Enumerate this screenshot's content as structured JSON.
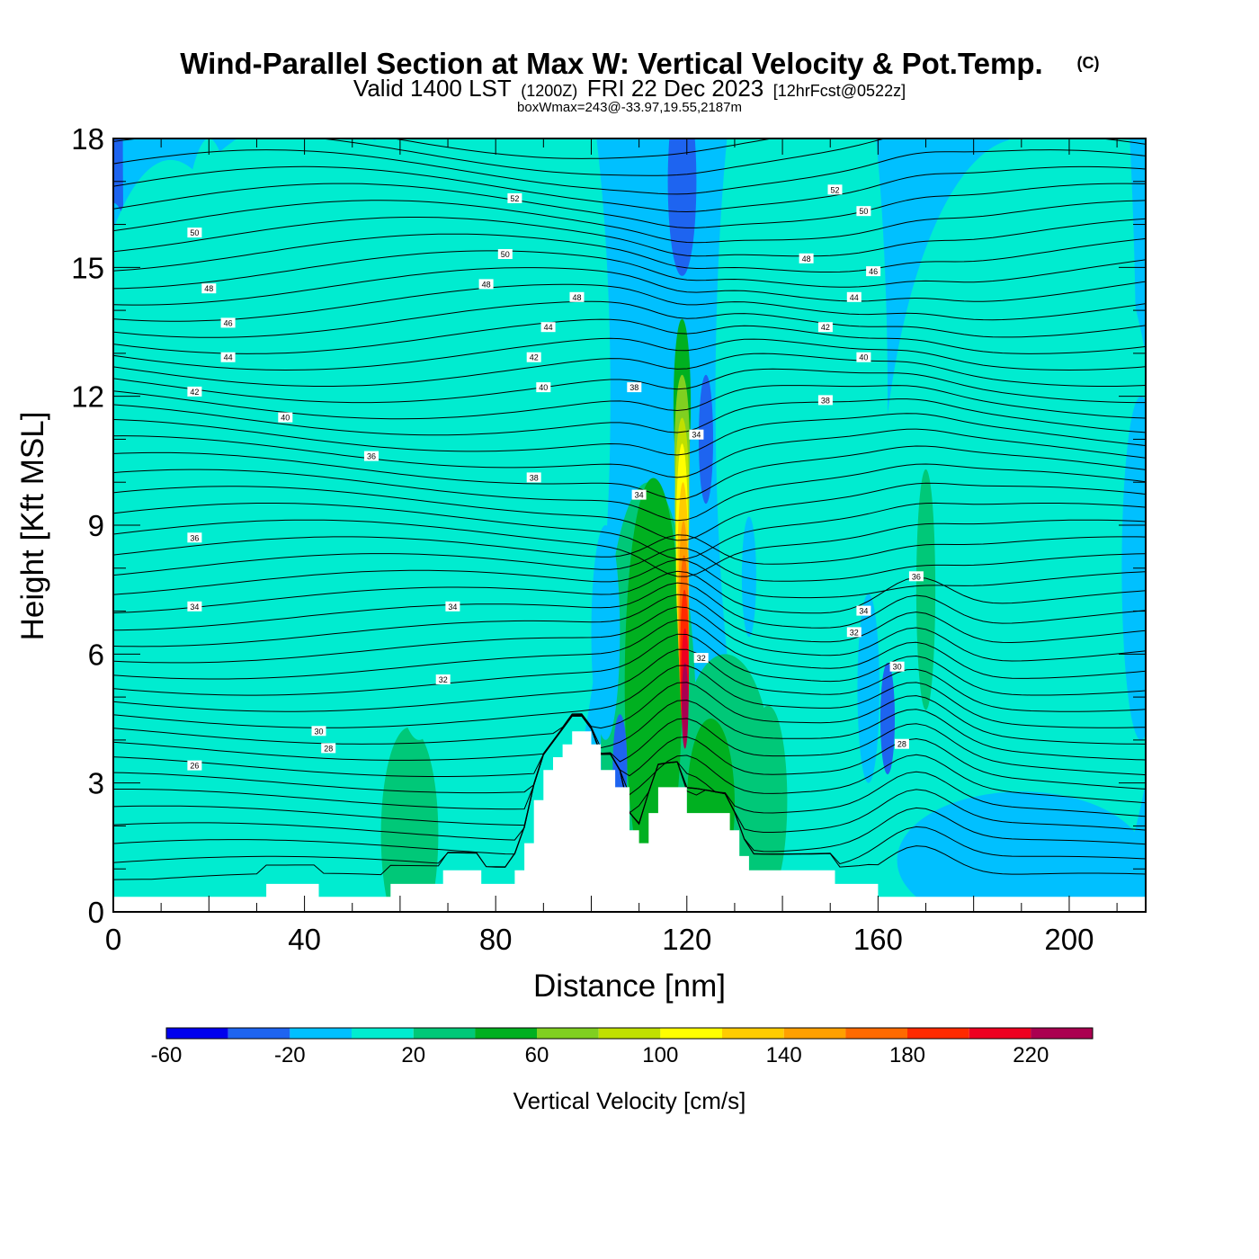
{
  "chart_data": {
    "type": "contour",
    "title": "Wind-Parallel Section at Max W: Vertical Velocity & Pot.Temp.",
    "title_suffix": "(C)",
    "subtitle_prefix": "Valid 1400 LST",
    "subtitle_z": "(1200Z)",
    "subtitle_date": "FRI 22 Dec 2023",
    "subtitle_fcst": "[12hrFcst@0522z]",
    "subtitle_meta": "boxWmax=243@-33.97,19.55,2187m",
    "xlabel": "Distance [nm]",
    "ylabel": "Height [Kft MSL]",
    "xlim": [
      0,
      216
    ],
    "ylim": [
      0,
      18
    ],
    "x_ticks": [
      0,
      40,
      80,
      120,
      160,
      200
    ],
    "y_ticks": [
      0,
      3,
      6,
      9,
      12,
      15,
      18
    ],
    "x_tick_labels": [
      "0",
      "40",
      "80",
      "120",
      "160",
      "200"
    ],
    "y_tick_labels": [
      "0",
      "3",
      "6",
      "9",
      "12",
      "15",
      "18"
    ],
    "colorbar": {
      "label": "Vertical Velocity [cm/s]",
      "bounds": [
        -60,
        -40,
        -20,
        0,
        20,
        40,
        60,
        80,
        100,
        120,
        140,
        160,
        180,
        200,
        220,
        240
      ],
      "colors": [
        "#0000ee",
        "#1e64f0",
        "#00c0ff",
        "#00ecd0",
        "#00c878",
        "#00b020",
        "#80d020",
        "#c0e000",
        "#ffff00",
        "#ffcc00",
        "#ffa000",
        "#ff6a00",
        "#ff2a00",
        "#ee0020",
        "#aa0050"
      ],
      "tick_values": [
        -60,
        -20,
        20,
        60,
        100,
        140,
        180,
        220
      ],
      "tick_labels": [
        "-60",
        "-20",
        "20",
        "60",
        "100",
        "140",
        "180",
        "220"
      ]
    },
    "terrain_kft": [
      [
        0,
        0.35
      ],
      [
        32,
        0.35
      ],
      [
        32,
        0.65
      ],
      [
        43,
        0.65
      ],
      [
        43,
        0.35
      ],
      [
        58,
        0.35
      ],
      [
        58,
        0.65
      ],
      [
        69,
        0.65
      ],
      [
        69,
        0.97
      ],
      [
        77,
        0.97
      ],
      [
        77,
        0.65
      ],
      [
        84,
        0.65
      ],
      [
        84,
        0.97
      ],
      [
        86,
        0.97
      ],
      [
        86,
        1.6
      ],
      [
        88,
        1.6
      ],
      [
        88,
        2.6
      ],
      [
        90,
        2.6
      ],
      [
        90,
        3.3
      ],
      [
        92,
        3.3
      ],
      [
        92,
        3.6
      ],
      [
        94,
        3.6
      ],
      [
        94,
        3.9
      ],
      [
        96,
        3.9
      ],
      [
        96,
        4.2
      ],
      [
        100,
        4.2
      ],
      [
        100,
        3.9
      ],
      [
        102,
        3.9
      ],
      [
        102,
        3.3
      ],
      [
        105,
        3.3
      ],
      [
        105,
        2.9
      ],
      [
        108,
        2.9
      ],
      [
        108,
        1.9
      ],
      [
        110,
        1.9
      ],
      [
        110,
        1.6
      ],
      [
        112,
        1.6
      ],
      [
        112,
        2.3
      ],
      [
        114,
        2.3
      ],
      [
        114,
        2.9
      ],
      [
        120,
        2.9
      ],
      [
        120,
        2.3
      ],
      [
        129,
        2.3
      ],
      [
        129,
        1.9
      ],
      [
        131,
        1.9
      ],
      [
        131,
        1.3
      ],
      [
        133,
        1.3
      ],
      [
        133,
        0.97
      ],
      [
        151,
        0.97
      ],
      [
        151,
        0.65
      ],
      [
        160,
        0.65
      ],
      [
        160,
        0.35
      ],
      [
        216,
        0.35
      ]
    ],
    "field": [
      [
        0,
        18,
        12,
        18,
        1
      ],
      [
        16,
        18,
        14,
        15,
        2
      ],
      [
        30,
        18,
        18,
        16,
        2
      ],
      [
        56,
        18,
        14,
        18,
        2
      ],
      [
        78,
        18,
        16,
        15,
        2
      ],
      [
        150,
        18,
        22,
        15,
        2
      ],
      [
        188,
        18,
        28,
        12,
        2
      ],
      [
        0,
        6.5,
        8,
        10,
        2
      ],
      [
        20,
        6,
        10,
        12,
        3
      ],
      [
        12,
        7.5,
        22,
        10,
        3
      ],
      [
        40,
        8.5,
        45,
        10,
        3
      ],
      [
        70,
        6.5,
        20,
        12,
        3
      ],
      [
        55,
        3,
        30,
        4,
        3
      ],
      [
        62,
        1.8,
        6,
        2.5,
        4
      ],
      [
        40,
        11,
        14,
        14,
        3
      ],
      [
        64,
        14,
        10,
        10,
        3
      ],
      [
        86,
        12,
        18,
        11,
        3
      ],
      [
        144,
        12,
        18,
        12,
        3
      ],
      [
        190,
        8,
        30,
        10,
        3
      ],
      [
        200,
        12,
        14,
        14,
        3
      ],
      [
        158,
        3,
        18,
        5,
        3
      ],
      [
        190,
        1.2,
        26,
        1.6,
        2
      ],
      [
        215,
        8,
        4,
        4,
        2
      ],
      [
        112,
        4,
        10,
        6,
        4
      ],
      [
        128,
        3,
        10,
        3,
        4
      ],
      [
        137,
        2.6,
        4,
        2.2,
        4
      ],
      [
        113,
        5.3,
        6,
        4.8,
        5
      ],
      [
        125,
        2.5,
        5,
        2,
        5
      ],
      [
        103,
        6.5,
        3,
        2.5,
        2
      ],
      [
        106,
        3.4,
        1.5,
        1.2,
        1
      ],
      [
        158,
        5.2,
        2.3,
        2.2,
        2
      ],
      [
        162,
        4.5,
        1.5,
        1.3,
        1
      ],
      [
        133,
        7.8,
        1.5,
        1.4,
        2
      ],
      [
        122,
        9.2,
        2,
        2.2,
        2
      ],
      [
        124,
        11,
        1.5,
        1.5,
        1
      ],
      [
        119,
        17,
        3,
        2.2,
        1
      ],
      [
        119,
        12.8,
        3,
        2,
        2
      ],
      [
        170,
        7.5,
        2,
        2.8,
        4
      ],
      [
        60,
        2.2,
        2,
        1.2,
        4
      ],
      [
        119,
        11.8,
        1.8,
        2,
        5
      ],
      [
        119,
        10.7,
        1.6,
        1.8,
        6
      ],
      [
        119,
        9.5,
        1.5,
        2,
        7
      ],
      [
        119,
        8.4,
        1.3,
        2.5,
        8
      ],
      [
        119.2,
        7.6,
        1.2,
        2.4,
        9
      ],
      [
        119.3,
        6.9,
        1.1,
        2.2,
        10
      ],
      [
        119.4,
        6.3,
        1,
        2,
        11
      ],
      [
        119.5,
        5.8,
        0.9,
        1.7,
        12
      ],
      [
        119.6,
        5.3,
        0.8,
        1.3,
        13
      ],
      [
        119.6,
        4.8,
        0.7,
        1,
        14
      ]
    ],
    "contour_labels": [
      {
        "text": "52",
        "x": 84,
        "y": 16.6
      },
      {
        "text": "50",
        "x": 17,
        "y": 15.8
      },
      {
        "text": "50",
        "x": 82,
        "y": 15.3
      },
      {
        "text": "48",
        "x": 20,
        "y": 14.5
      },
      {
        "text": "48",
        "x": 78,
        "y": 14.6
      },
      {
        "text": "48",
        "x": 97,
        "y": 14.3
      },
      {
        "text": "46",
        "x": 24,
        "y": 13.7
      },
      {
        "text": "44",
        "x": 91,
        "y": 13.6
      },
      {
        "text": "44",
        "x": 24,
        "y": 12.9
      },
      {
        "text": "42",
        "x": 88,
        "y": 12.9
      },
      {
        "text": "42",
        "x": 17,
        "y": 12.1
      },
      {
        "text": "40",
        "x": 90,
        "y": 12.2
      },
      {
        "text": "40",
        "x": 36,
        "y": 11.5
      },
      {
        "text": "38",
        "x": 109,
        "y": 12.2
      },
      {
        "text": "36",
        "x": 54,
        "y": 10.6
      },
      {
        "text": "38",
        "x": 88,
        "y": 10.1
      },
      {
        "text": "34",
        "x": 110,
        "y": 9.7
      },
      {
        "text": "36",
        "x": 17,
        "y": 8.7
      },
      {
        "text": "34",
        "x": 17,
        "y": 7.1
      },
      {
        "text": "34",
        "x": 71,
        "y": 7.1
      },
      {
        "text": "32",
        "x": 69,
        "y": 5.4
      },
      {
        "text": "30",
        "x": 43,
        "y": 4.2
      },
      {
        "text": "28",
        "x": 45,
        "y": 3.8
      },
      {
        "text": "26",
        "x": 17,
        "y": 3.4
      },
      {
        "text": "34",
        "x": 122,
        "y": 11.1
      },
      {
        "text": "32",
        "x": 123,
        "y": 5.9
      },
      {
        "text": "52",
        "x": 151,
        "y": 16.8
      },
      {
        "text": "50",
        "x": 157,
        "y": 16.3
      },
      {
        "text": "48",
        "x": 145,
        "y": 15.2
      },
      {
        "text": "46",
        "x": 159,
        "y": 14.9
      },
      {
        "text": "44",
        "x": 155,
        "y": 14.3
      },
      {
        "text": "42",
        "x": 149,
        "y": 13.6
      },
      {
        "text": "40",
        "x": 157,
        "y": 12.9
      },
      {
        "text": "38",
        "x": 149,
        "y": 11.9
      },
      {
        "text": "36",
        "x": 168,
        "y": 7.8
      },
      {
        "text": "34",
        "x": 157,
        "y": 7.0
      },
      {
        "text": "32",
        "x": 155,
        "y": 6.5
      },
      {
        "text": "30",
        "x": 164,
        "y": 5.7
      },
      {
        "text": "28",
        "x": 165,
        "y": 3.9
      }
    ]
  }
}
